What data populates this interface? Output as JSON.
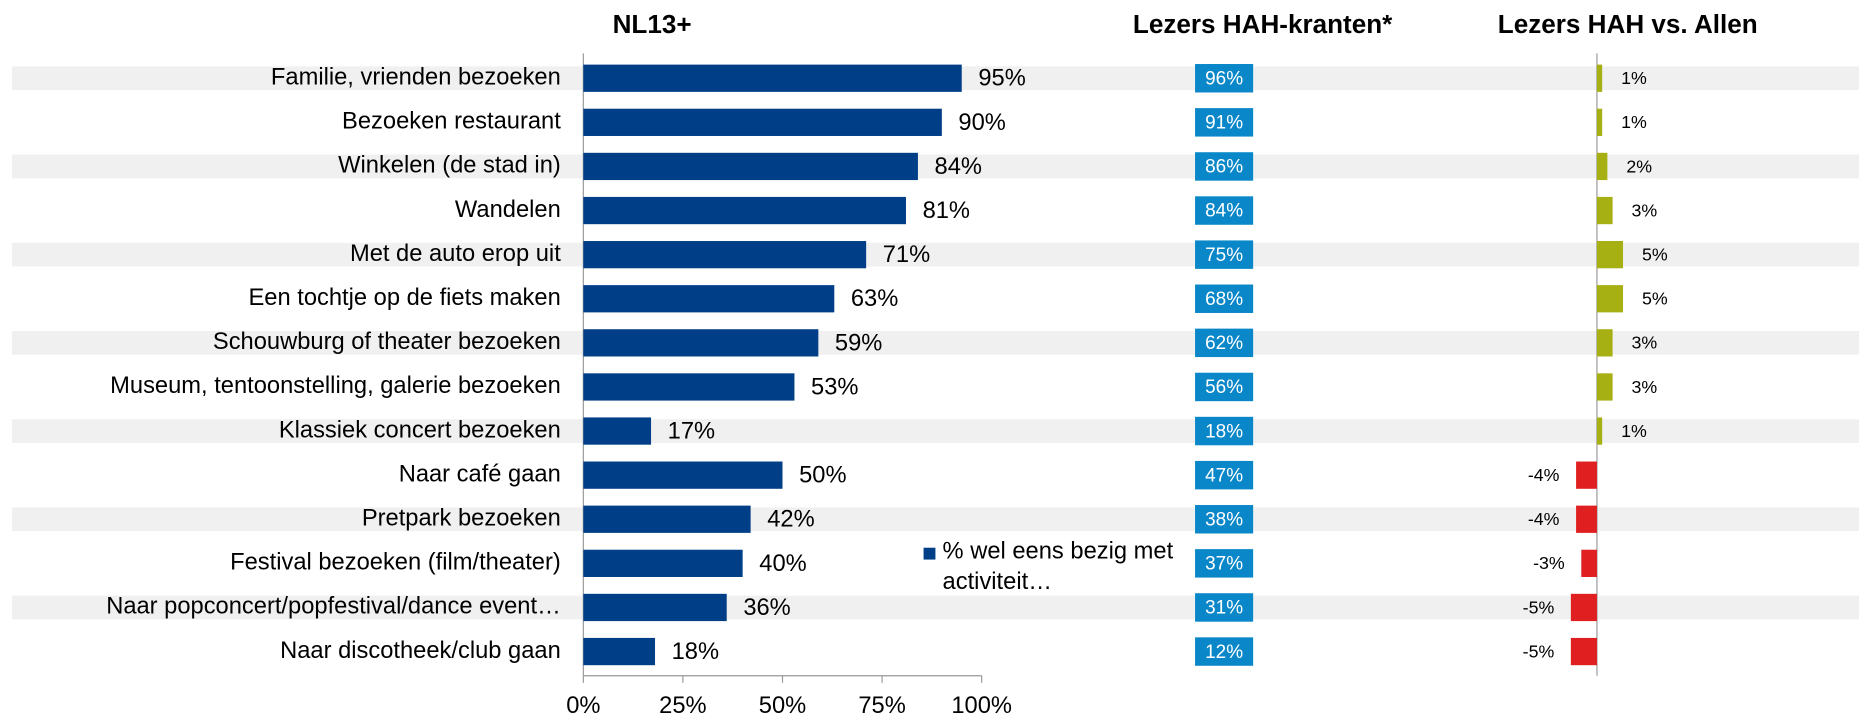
{
  "chart_data": [
    {
      "type": "bar",
      "title": "NL13+",
      "categories": [
        "Familie, vrienden bezoeken",
        "Bezoeken restaurant",
        "Winkelen (de stad in)",
        "Wandelen",
        "Met de auto erop uit",
        "Een tochtje op de fiets maken",
        "Schouwburg of theater bezoeken",
        "Museum, tentoonstelling, galerie bezoeken",
        "Klassiek concert bezoeken",
        "Naar café gaan",
        "Pretpark bezoeken",
        "Festival bezoeken (film/theater)",
        "Naar popconcert/popfestival/dance event…",
        "Naar discotheek/club gaan"
      ],
      "series": [
        {
          "name": "% wel eens bezig met activiteit…",
          "color": "#003f87",
          "values": [
            95,
            90,
            84,
            81,
            71,
            63,
            59,
            53,
            17,
            50,
            42,
            40,
            36,
            18
          ],
          "value_labels": [
            "95%",
            "90%",
            "84%",
            "81%",
            "71%",
            "63%",
            "59%",
            "53%",
            "17%",
            "50%",
            "42%",
            "40%",
            "36%",
            "18%"
          ]
        }
      ],
      "xlim": [
        0,
        100
      ],
      "xticks": [
        {
          "value": 0,
          "label": "0%"
        },
        {
          "value": 25,
          "label": "25%"
        },
        {
          "value": 50,
          "label": "50%"
        },
        {
          "value": 75,
          "label": "75%"
        },
        {
          "value": 100,
          "label": "100%"
        }
      ]
    },
    {
      "type": "label-column",
      "title": "Lezers HAH-kranten*",
      "color": "#0a87c8",
      "values": [
        96,
        91,
        86,
        84,
        75,
        68,
        62,
        56,
        18,
        47,
        38,
        37,
        31,
        12
      ],
      "value_labels": [
        "96%",
        "91%",
        "86%",
        "84%",
        "75%",
        "68%",
        "62%",
        "56%",
        "18%",
        "47%",
        "38%",
        "37%",
        "31%",
        "12%"
      ]
    },
    {
      "type": "diverging-bar",
      "title": "Lezers HAH vs. Allen",
      "positive_color": "#a6b012",
      "negative_color": "#e02020",
      "values": [
        1,
        1,
        2,
        3,
        5,
        5,
        3,
        3,
        1,
        -4,
        -4,
        -3,
        -5,
        -5
      ],
      "value_labels": [
        "1%",
        "1%",
        "2%",
        "3%",
        "5%",
        "5%",
        "3%",
        "3%",
        "1%",
        "-4%",
        "-4%",
        "-3%",
        "-5%",
        "-5%"
      ]
    }
  ]
}
